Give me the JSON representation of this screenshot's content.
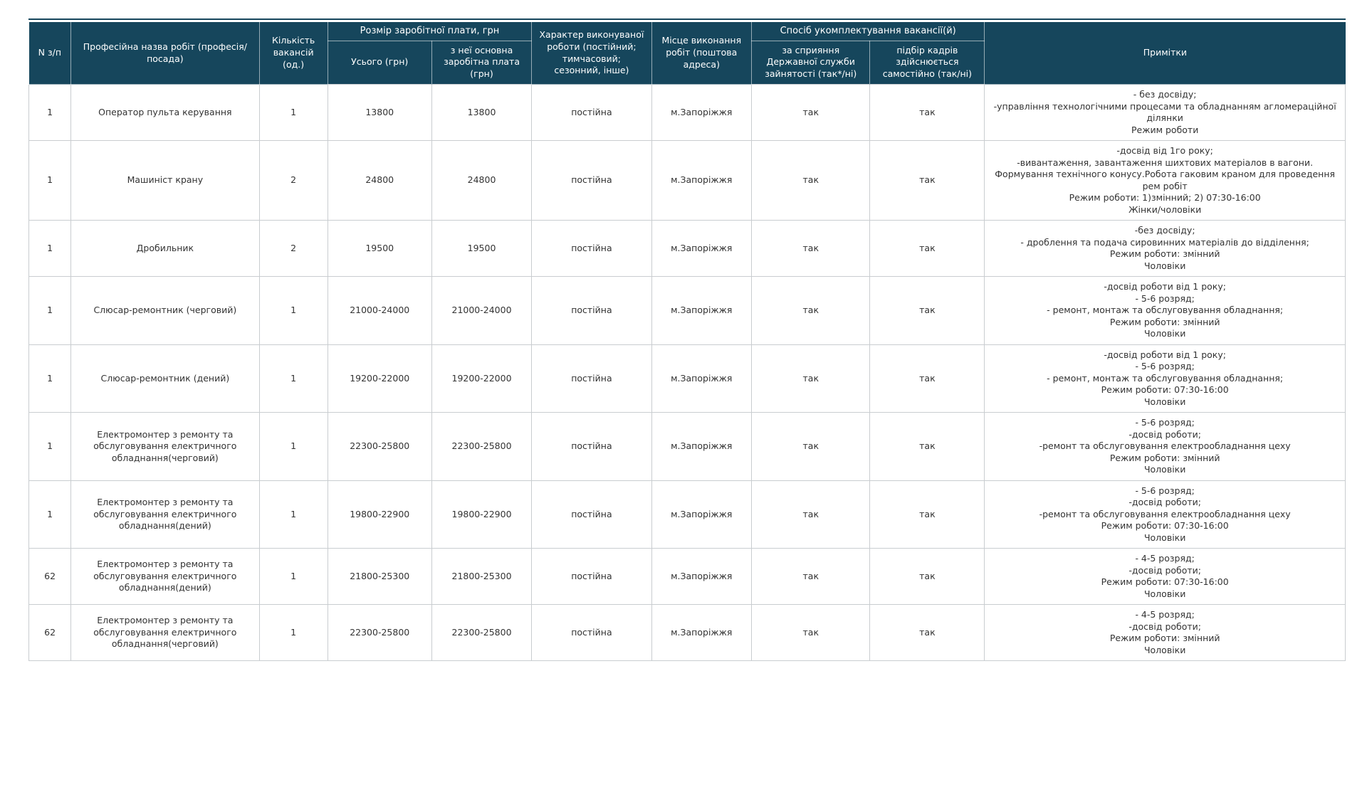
{
  "colors": {
    "header_bg": "#16465C",
    "header_text": "#FFFFFF",
    "body_text": "#333333",
    "grid_line": "#C9CDD0"
  },
  "table": {
    "header": {
      "n": "N з/п",
      "profession": "Професійна назва робіт (професія/посада)",
      "vacancies": "Кількість вакансій (од.)",
      "salary_group": "Розмір заробітної плати, грн",
      "salary_total": "Усього (грн)",
      "salary_base": "з неї основна заробітна плата (грн)",
      "work_nature": "Характер виконуваної роботи (постійний; тимчасовий; сезонний, інше)",
      "work_location": "Місце виконання робіт (поштова адреса)",
      "staffing_group": "Спосіб укомплектування вакансії(й)",
      "via_employment_service": "за сприяння Державної служби зайнятості (так*/ні)",
      "self_recruitment": "підбір кадрів здійснюється самостійно (так/ні)",
      "notes": "Примітки"
    },
    "cell_names": [
      "row-number-cell",
      "profession-cell",
      "vacancy-count-cell",
      "salary-total-cell",
      "salary-base-cell",
      "work-nature-cell",
      "work-location-cell",
      "employment-service-cell",
      "self-recruitment-cell",
      "notes-cell"
    ],
    "rows": [
      {
        "cells": [
          "1",
          "Оператор пульта керування",
          "1",
          "13800",
          "13800",
          "постійна",
          "м.Запоріжжя",
          "так",
          "так",
          [
            "- без досвіду;",
            "-управління технологічними процесами та обладнанням агломераційної ділянки",
            "Режим роботи"
          ]
        ]
      },
      {
        "cells": [
          "1",
          "Машиніст крану",
          "2",
          "24800",
          "24800",
          "постійна",
          "м.Запоріжжя",
          "так",
          "так",
          [
            "-досвід від 1го року;",
            "-вивантаження, завантаження шихтових матеріалов в вагони. Формування  технічного конусу.Робота гаковим краном для проведення рем робіт",
            "Режим роботи: 1)змінний; 2) 07:30-16:00",
            "Жінки/чоловіки"
          ]
        ]
      },
      {
        "cells": [
          "1",
          "Дробильник",
          "2",
          "19500",
          "19500",
          "постійна",
          "м.Запоріжжя",
          "так",
          "так",
          [
            "-без досвіду;",
            "- дроблення та подача сировинних матеріалів до відділення;",
            "Режим роботи: змінний",
            "Чоловіки"
          ]
        ]
      },
      {
        "cells": [
          "1",
          "Слюсар-ремонтник (черговий)",
          "1",
          "21000-24000",
          "21000-24000",
          "постійна",
          "м.Запоріжжя",
          "так",
          "так",
          [
            "-досвід роботи від 1 року;",
            "- 5-6 розряд;",
            "- ремонт, монтаж та обслуговування обладнання;",
            "Режим роботи: змінний",
            "Чоловіки"
          ]
        ]
      },
      {
        "cells": [
          "1",
          "Слюсар-ремонтник (дений)",
          "1",
          "19200-22000",
          "19200-22000",
          "постійна",
          "м.Запоріжжя",
          "так",
          "так",
          [
            "-досвід роботи від 1 року;",
            "- 5-6 розряд;",
            "- ремонт, монтаж та обслуговування обладнання;",
            "Режим роботи: 07:30-16:00",
            "Чоловіки"
          ]
        ]
      },
      {
        "cells": [
          "1",
          "Електромонтер з ремонту та обслуговування електричного обладнання(черговий)",
          "1",
          "22300-25800",
          "22300-25800",
          "постійна",
          "м.Запоріжжя",
          "так",
          "так",
          [
            "- 5-6 розряд;",
            "-досвід роботи;",
            "-ремонт та обслуговування електрообладнання цеху",
            "Режим роботи: змінний",
            "Чоловіки"
          ]
        ]
      },
      {
        "cells": [
          "1",
          "Електромонтер з ремонту та обслуговування електричного обладнання(дений)",
          "1",
          "19800-22900",
          "19800-22900",
          "постійна",
          "м.Запоріжжя",
          "так",
          "так",
          [
            "- 5-6 розряд;",
            "-досвід роботи;",
            "-ремонт та обслуговування електрообладнання цеху",
            "Режим роботи: 07:30-16:00",
            "Чоловіки"
          ]
        ]
      },
      {
        "cells": [
          "62",
          "Електромонтер з ремонту та обслуговування електричного обладнання(дений)",
          "1",
          "21800-25300",
          "21800-25300",
          "постійна",
          "м.Запоріжжя",
          "так",
          "так",
          [
            "- 4-5 розряд;",
            "-досвід роботи;",
            "Режим роботи: 07:30-16:00",
            "Чоловіки"
          ]
        ]
      },
      {
        "cells": [
          "62",
          "Електромонтер з ремонту та обслуговування електричного обладнання(черговий)",
          "1",
          "22300-25800",
          "22300-25800",
          "постійна",
          "м.Запоріжжя",
          "так",
          "так",
          [
            "- 4-5 розряд;",
            "-досвід роботи;",
            "Режим роботи: змінний",
            "Чоловіки"
          ]
        ]
      }
    ]
  }
}
